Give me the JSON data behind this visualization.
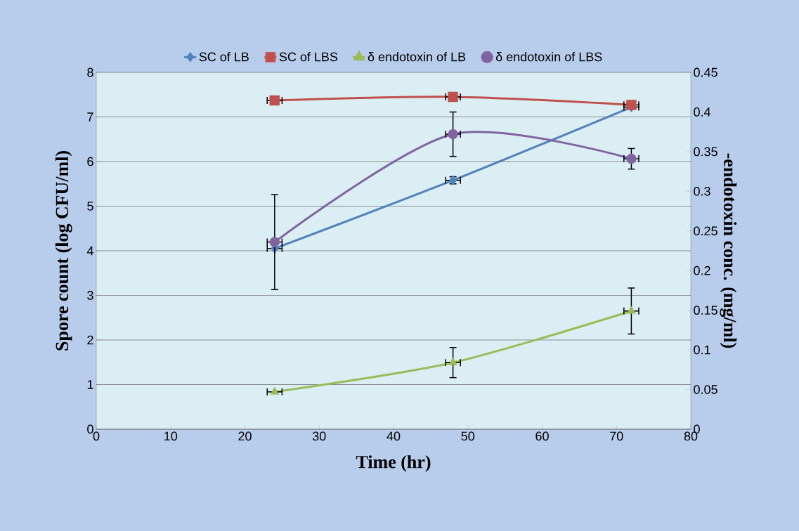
{
  "chart_data": {
    "type": "line",
    "xlabel": "Time (hr)",
    "ylabel": "Spore count (log CFU/ml)",
    "y2label": "-endotoxin conc. (mg/ml)",
    "xlim": [
      0,
      80
    ],
    "xticks": [
      0,
      10,
      20,
      30,
      40,
      50,
      60,
      70,
      80
    ],
    "ylim": [
      0,
      8
    ],
    "yticks": [
      0,
      1,
      2,
      3,
      4,
      5,
      6,
      7,
      8
    ],
    "y2lim": [
      0,
      0.45
    ],
    "y2ticks": [
      0,
      0.05,
      0.1,
      0.15,
      0.2,
      0.25,
      0.3,
      0.35,
      0.4,
      0.45
    ],
    "grid": "y",
    "legend": "top",
    "series": [
      {
        "name": "SC of LB",
        "color": "#4f81bd",
        "marker": "diamond",
        "x": [
          24,
          48,
          72
        ],
        "values": [
          4.05,
          5.58,
          7.22
        ],
        "errors": [
          null,
          0.08,
          null
        ],
        "xerrors": [
          1,
          1,
          1
        ]
      },
      {
        "name": "SC of LBS",
        "color": "#c0504d",
        "marker": "square",
        "x": [
          24,
          48,
          72
        ],
        "values": [
          7.37,
          7.45,
          7.27
        ],
        "xerrors": [
          1,
          1,
          1
        ]
      },
      {
        "name": "δ endotoxin of LB",
        "color": "#9bbb59",
        "marker": "triangle",
        "axis": "y2",
        "x": [
          24,
          48,
          72
        ],
        "values": [
          0.047,
          0.084,
          0.149
        ],
        "errors": [
          null,
          0.019,
          0.029
        ],
        "xerrors": [
          1,
          1,
          1
        ]
      },
      {
        "name": "δ endotoxin of LBS",
        "color": "#8064a2",
        "marker": "circle",
        "axis": "y2",
        "x": [
          24,
          48,
          72
        ],
        "values": [
          0.236,
          0.372,
          0.341
        ],
        "errors": [
          0.06,
          0.028,
          0.013
        ],
        "xerrors": [
          1,
          1,
          1
        ]
      }
    ]
  }
}
